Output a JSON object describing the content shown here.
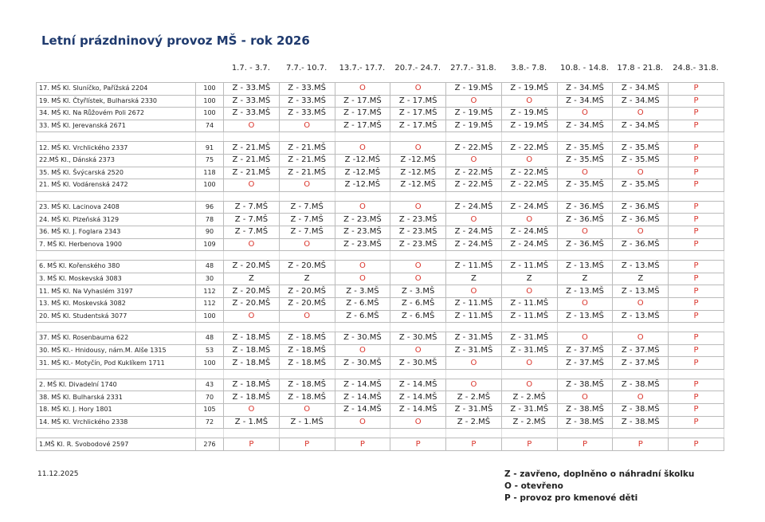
{
  "title": "Letní prázdninový provoz MŠ - rok 2026",
  "columns": [
    "1.7. - 3.7.",
    "7.7.- 10.7.",
    "13.7.- 17.7.",
    "20.7.- 24.7.",
    "27.7.- 31.8.",
    "3.8.- 7.8.",
    "10.8. - 14.8.",
    "17.8 - 21.8.",
    "24.8.- 31.8."
  ],
  "groups": [
    {
      "rows": [
        {
          "name": "17. MŠ Kl. Sluníčko, Pařížská 2204",
          "capacity": 100,
          "cells": [
            "Z - 33.MŠ",
            "Z - 33.MŠ",
            "O",
            "O",
            "Z - 19.MŠ",
            "Z - 19.MŠ",
            "Z - 34.MŠ",
            "Z - 34.MŠ",
            "P"
          ]
        },
        {
          "name": "19. MŠ Kl. Čtyřlístek, Bulharská 2330",
          "capacity": 100,
          "cells": [
            "Z - 33.MŠ",
            "Z - 33.MŠ",
            "Z - 17.MŠ",
            "Z - 17.MŠ",
            "O",
            "O",
            "Z - 34.MŠ",
            "Z - 34.MŠ",
            "P"
          ]
        },
        {
          "name": "34. MŠ Kl. Na Růžovém Poli 2672",
          "capacity": 100,
          "cells": [
            "Z - 33.MŠ",
            "Z - 33.MŠ",
            "Z - 17.MŠ",
            "Z - 17.MŠ",
            "Z - 19.MŠ",
            "Z - 19.MŠ",
            "O",
            "O",
            "P"
          ]
        },
        {
          "name": "33. MŠ Kl. Jerevanská 2671",
          "capacity": 74,
          "cells": [
            "O",
            "O",
            "Z - 17.MŠ",
            "Z - 17.MŠ",
            "Z - 19.MŠ",
            "Z - 19.MŠ",
            "Z - 34.MŠ",
            "Z - 34.MŠ",
            "P"
          ]
        }
      ]
    },
    {
      "rows": [
        {
          "name": "12. MŠ Kl. Vrchlického 2337",
          "capacity": 91,
          "cells": [
            "Z - 21.MŠ",
            "Z - 21.MŠ",
            "O",
            "O",
            "Z - 22.MŠ",
            "Z - 22.MŠ",
            "Z - 35.MŠ",
            "Z - 35.MŠ",
            "P"
          ]
        },
        {
          "name": "22.MŠ Kl., Dánská 2373",
          "capacity": 75,
          "cells": [
            "Z - 21.MŠ",
            "Z - 21.MŠ",
            "Z -12.MŠ",
            "Z -12.MŠ",
            "O",
            "O",
            "Z - 35.MŠ",
            "Z - 35.MŠ",
            "P"
          ]
        },
        {
          "name": "35. MŠ Kl. Švýcarská 2520",
          "capacity": 118,
          "cells": [
            "Z - 21.MŠ",
            "Z - 21.MŠ",
            "Z -12.MŠ",
            "Z -12.MŠ",
            "Z - 22.MŠ",
            "Z - 22.MŠ",
            "O",
            "O",
            "P"
          ]
        },
        {
          "name": "21. MŠ Kl. Vodárenská 2472",
          "capacity": 100,
          "cells": [
            "O",
            "O",
            "Z -12.MŠ",
            "Z -12.MŠ",
            "Z - 22.MŠ",
            "Z - 22.MŠ",
            "Z - 35.MŠ",
            "Z - 35.MŠ",
            "P"
          ]
        }
      ]
    },
    {
      "rows": [
        {
          "name": "23. MŠ Kl. Lacinova 2408",
          "capacity": 96,
          "cells": [
            "Z - 7.MŠ",
            "Z - 7.MŠ",
            "O",
            "O",
            "Z - 24.MŠ",
            "Z - 24.MŠ",
            "Z - 36.MŠ",
            "Z - 36.MŠ",
            "P"
          ]
        },
        {
          "name": "24. MŠ Kl. Plzeňská 3129",
          "capacity": 78,
          "cells": [
            "Z - 7.MŠ",
            "Z - 7.MŠ",
            "Z - 23.MŠ",
            "Z - 23.MŠ",
            "O",
            "O",
            "Z - 36.MŠ",
            "Z - 36.MŠ",
            "P"
          ]
        },
        {
          "name": "36. MŠ Kl. J. Foglara 2343",
          "capacity": 90,
          "cells": [
            "Z - 7.MŠ",
            "Z - 7.MŠ",
            "Z - 23.MŠ",
            "Z - 23.MŠ",
            "Z - 24.MŠ",
            "Z - 24.MŠ",
            "O",
            "O",
            "P"
          ]
        },
        {
          "name": "7. MŠ Kl. Herbenova 1900",
          "capacity": 109,
          "cells": [
            "O",
            "O",
            "Z - 23.MŠ",
            "Z - 23.MŠ",
            "Z - 24.MŠ",
            "Z - 24.MŠ",
            "Z - 36.MŠ",
            "Z - 36.MŠ",
            "P"
          ]
        }
      ]
    },
    {
      "rows": [
        {
          "name": "6. MŠ Kl. Kořenského 380",
          "capacity": 48,
          "cells": [
            "Z - 20.MŠ",
            "Z - 20.MŠ",
            "O",
            "O",
            "Z - 11.MŠ",
            "Z - 11.MŠ",
            "Z - 13.MŠ",
            "Z - 13.MŠ",
            "P"
          ]
        },
        {
          "name": "3. MŠ Kl. Moskevská 3083",
          "capacity": 30,
          "cells": [
            "Z",
            "Z",
            "O",
            "O",
            "Z",
            "Z",
            "Z",
            "Z",
            "P"
          ]
        },
        {
          "name": "11. MŠ Kl. Na Vyhaslém 3197",
          "capacity": 112,
          "cells": [
            "Z - 20.MŠ",
            "Z - 20.MŠ",
            "Z - 3.MŠ",
            "Z - 3.MŠ",
            "O",
            "O",
            "Z - 13.MŠ",
            "Z - 13.MŠ",
            "P"
          ]
        },
        {
          "name": "13. MŠ Kl. Moskevská 3082",
          "capacity": 112,
          "cells": [
            "Z - 20.MŠ",
            "Z - 20.MŠ",
            "Z - 6.MŠ",
            "Z - 6.MŠ",
            "Z - 11.MŠ",
            "Z - 11.MŠ",
            "O",
            "O",
            "P"
          ]
        },
        {
          "name": "20. MŠ Kl. Studentská 3077",
          "capacity": 100,
          "cells": [
            "O",
            "O",
            "Z - 6.MŠ",
            "Z - 6.MŠ",
            "Z - 11.MŠ",
            "Z - 11.MŠ",
            "Z - 13.MŠ",
            "Z - 13.MŠ",
            "P"
          ]
        }
      ]
    },
    {
      "rows": [
        {
          "name": "37. MŠ Kl. Rosenbauma 622",
          "capacity": 48,
          "cells": [
            "Z - 18.MŠ",
            "Z - 18.MŠ",
            "Z - 30.MŠ",
            "Z - 30.MŠ",
            "Z - 31.MŠ",
            "Z - 31.MŠ",
            "O",
            "O",
            "P"
          ]
        },
        {
          "name": "30. MŠ Kl.- Hnidousy, nám.M. Alše 1315",
          "capacity": 53,
          "cells": [
            "Z - 18.MŠ",
            "Z - 18.MŠ",
            "O",
            "O",
            "Z - 31.MŠ",
            "Z - 31.MŠ",
            "Z - 37.MŠ",
            "Z - 37.MŠ",
            "P"
          ]
        },
        {
          "name": "31. MŠ Kl.- Motyčín, Pod Kuklíkem 1711",
          "capacity": 100,
          "cells": [
            "Z - 18.MŠ",
            "Z - 18.MŠ",
            "Z - 30.MŠ",
            "Z - 30.MŠ",
            "O",
            "O",
            "Z - 37.MŠ",
            "Z - 37.MŠ",
            "P"
          ]
        }
      ]
    },
    {
      "rows": [
        {
          "name": "2. MŠ Kl. Divadelní 1740",
          "capacity": 43,
          "cells": [
            "Z - 18.MŠ",
            "Z - 18.MŠ",
            "Z - 14.MŠ",
            "Z - 14.MŠ",
            "O",
            "O",
            "Z - 38.MŠ",
            "Z - 38.MŠ",
            "P"
          ]
        },
        {
          "name": "38. MŠ Kl. Bulharská 2331",
          "capacity": 70,
          "cells": [
            "Z - 18.MŠ",
            "Z - 18.MŠ",
            "Z - 14.MŠ",
            "Z - 14.MŠ",
            "Z - 2.MŠ",
            "Z - 2.MŠ",
            "O",
            "O",
            "P"
          ]
        },
        {
          "name": "18. MŠ Kl. J. Hory 1801",
          "capacity": 105,
          "cells": [
            "O",
            "O",
            "Z - 14.MŠ",
            "Z - 14.MŠ",
            "Z - 31.MŠ",
            "Z - 31.MŠ",
            "Z - 38.MŠ",
            "Z - 38.MŠ",
            "P"
          ]
        },
        {
          "name": "14. MŠ Kl. Vrchlického 2338",
          "capacity": 72,
          "cells": [
            "Z - 1.MŠ",
            "Z - 1.MŠ",
            "O",
            "O",
            "Z - 2.MŠ",
            "Z - 2.MŠ",
            "Z - 38.MŠ",
            "Z - 38.MŠ",
            "P"
          ]
        }
      ]
    },
    {
      "rows": [
        {
          "name": "1.MŠ Kl. R. Svobodové 2597",
          "capacity": 276,
          "cells": [
            "P",
            "P",
            "P",
            "P",
            "P",
            "P",
            "P",
            "P",
            "P"
          ]
        }
      ]
    }
  ],
  "footer": {
    "date": "11.12.2025",
    "legend": [
      "Z - zavřeno, doplněno o náhradní školku",
      "O - otevřeno",
      "P - provoz pro kmenové děti"
    ]
  }
}
